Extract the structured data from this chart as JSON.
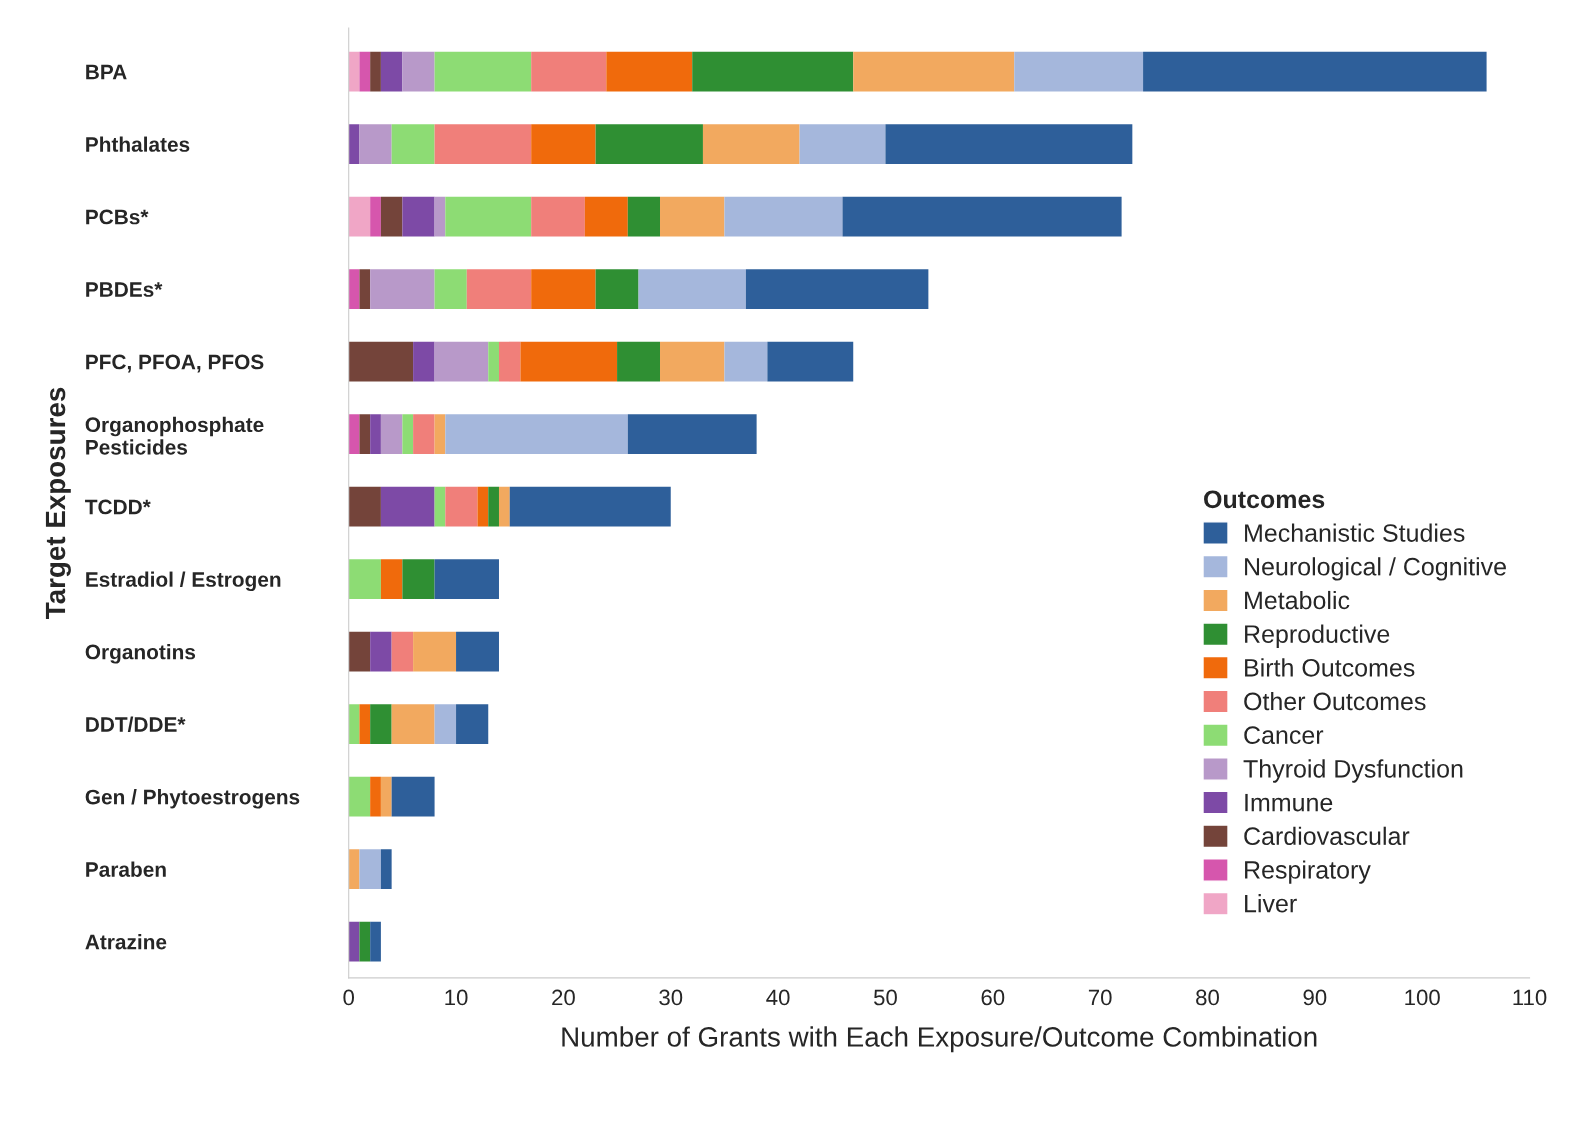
{
  "chart_data": {
    "type": "bar",
    "orientation": "horizontal",
    "stacked": true,
    "categories": [
      "BPA",
      "Phthalates",
      "PCBs*",
      "PBDEs*",
      "PFC, PFOA, PFOS",
      "Organophosphate\nPesticides",
      "TCDD*",
      "Estradiol / Estrogen",
      "Organotins",
      "DDT/DDE*",
      "Gen / Phytoestrogens",
      "Paraben",
      "Atrazine"
    ],
    "series": [
      {
        "name": "Liver",
        "color": "#f0a6c6",
        "values": [
          1,
          0,
          2,
          0,
          0,
          0,
          0,
          0,
          0,
          0,
          0,
          0,
          0
        ]
      },
      {
        "name": "Respiratory",
        "color": "#d656ad",
        "values": [
          1,
          0,
          1,
          1,
          0,
          1,
          0,
          0,
          0,
          0,
          0,
          0,
          0
        ]
      },
      {
        "name": "Cardiovascular",
        "color": "#74443a",
        "values": [
          1,
          0,
          2,
          1,
          6,
          1,
          3,
          0,
          2,
          0,
          0,
          0,
          0
        ]
      },
      {
        "name": "Immune",
        "color": "#7d4aa6",
        "values": [
          2,
          1,
          3,
          0,
          2,
          1,
          5,
          0,
          2,
          0,
          0,
          0,
          1
        ]
      },
      {
        "name": "Thyroid Dysfunction",
        "color": "#b899c9",
        "values": [
          3,
          3,
          1,
          6,
          5,
          2,
          0,
          0,
          0,
          0,
          0,
          0,
          0
        ]
      },
      {
        "name": "Cancer",
        "color": "#8ddc74",
        "values": [
          9,
          4,
          8,
          3,
          1,
          1,
          1,
          3,
          0,
          1,
          2,
          0,
          0
        ]
      },
      {
        "name": "Other Outcomes",
        "color": "#f07f7a",
        "values": [
          7,
          9,
          5,
          6,
          2,
          2,
          3,
          0,
          2,
          0,
          0,
          0,
          0
        ]
      },
      {
        "name": "Birth Outcomes",
        "color": "#f06a0c",
        "values": [
          8,
          6,
          4,
          6,
          9,
          0,
          1,
          2,
          0,
          1,
          1,
          0,
          0
        ]
      },
      {
        "name": "Reproductive",
        "color": "#2f8f33",
        "values": [
          15,
          10,
          3,
          4,
          4,
          0,
          1,
          3,
          0,
          2,
          0,
          0,
          1
        ]
      },
      {
        "name": "Metabolic",
        "color": "#f2a95f",
        "values": [
          15,
          9,
          6,
          0,
          6,
          1,
          1,
          0,
          4,
          4,
          1,
          1,
          0
        ]
      },
      {
        "name": "Neurological / Cognitive",
        "color": "#a5b7dc",
        "values": [
          12,
          8,
          11,
          10,
          4,
          17,
          0,
          0,
          0,
          2,
          0,
          2,
          0
        ]
      },
      {
        "name": "Mechanistic Studies",
        "color": "#2e5f9a",
        "values": [
          32,
          23,
          26,
          17,
          8,
          12,
          15,
          6,
          4,
          3,
          4,
          1,
          1
        ]
      }
    ],
    "xlim": [
      0,
      110
    ],
    "xticks": [
      0,
      10,
      20,
      30,
      40,
      50,
      60,
      70,
      80,
      90,
      100,
      110
    ],
    "xlabel": "Number of Grants with Each Exposure/Outcome Combination",
    "ylabel": "Target Exposures",
    "legend_title": "Outcomes",
    "legend": "right",
    "grid": false
  }
}
